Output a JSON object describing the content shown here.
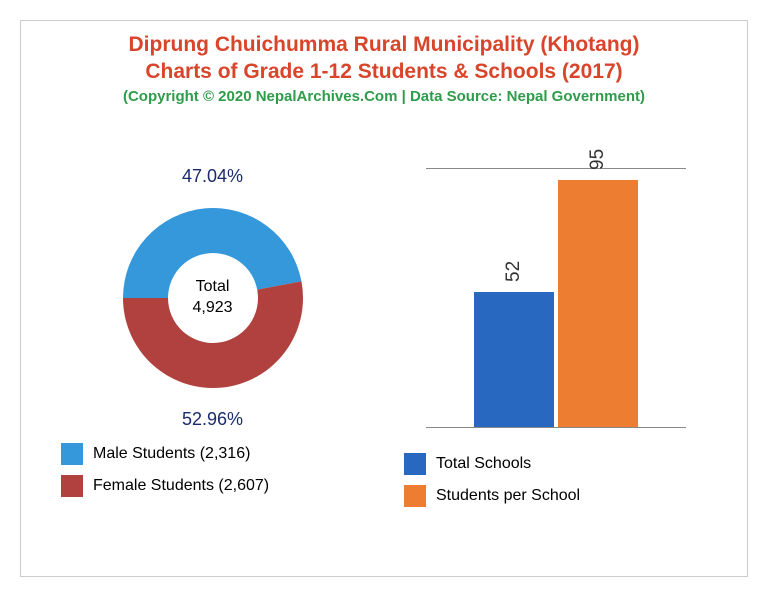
{
  "title_line1": "Diprung Chuichumma Rural Municipality (Khotang)",
  "title_line2": "Charts of Grade 1-12 Students & Schools (2017)",
  "title_color": "#d9452b",
  "copyright": "(Copyright © 2020 NepalArchives.Com | Data Source: Nepal Government)",
  "copyright_color": "#2e9c4a",
  "donut": {
    "male_pct": 47.04,
    "female_pct": 52.96,
    "male_pct_label": "47.04%",
    "female_pct_label": "52.96%",
    "male_color": "#3498db",
    "female_color": "#b0413e",
    "center_label": "Total",
    "center_value": "4,923",
    "pct_text_color": "#1a2a6c",
    "inner_radius": 45,
    "outer_radius": 90
  },
  "legend_left": [
    {
      "color": "#3498db",
      "label": "Male Students (2,316)"
    },
    {
      "color": "#b0413e",
      "label": "Female Students (2,607)"
    }
  ],
  "bar": {
    "items": [
      {
        "label": "52",
        "value": 52,
        "color": "#2968c0"
      },
      {
        "label": "95",
        "value": 95,
        "color": "#ed7d31"
      }
    ],
    "ymax": 100,
    "label_color": "#333333"
  },
  "legend_right": [
    {
      "color": "#2968c0",
      "label": "Total Schools"
    },
    {
      "color": "#ed7d31",
      "label": "Students per School"
    }
  ]
}
